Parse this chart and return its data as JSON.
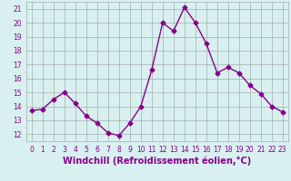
{
  "x": [
    0,
    1,
    2,
    3,
    4,
    5,
    6,
    7,
    8,
    9,
    10,
    11,
    12,
    13,
    14,
    15,
    16,
    17,
    18,
    19,
    20,
    21,
    22,
    23
  ],
  "y": [
    13.7,
    13.8,
    14.5,
    15.0,
    14.2,
    13.3,
    12.8,
    12.1,
    11.9,
    12.8,
    14.0,
    16.6,
    20.0,
    19.4,
    21.1,
    20.0,
    18.5,
    16.4,
    16.8,
    16.4,
    15.5,
    14.9,
    14.0,
    13.6
  ],
  "line_color": "#880088",
  "marker": "D",
  "marker_size": 2.5,
  "bg_color": "#d8f0f0",
  "grid_color": "#aaaaaa",
  "xlabel": "Windchill (Refroidissement éolien,°C)",
  "xlim": [
    -0.5,
    23.5
  ],
  "ylim": [
    11.5,
    21.5
  ],
  "yticks": [
    12,
    13,
    14,
    15,
    16,
    17,
    18,
    19,
    20,
    21
  ],
  "xticks": [
    0,
    1,
    2,
    3,
    4,
    5,
    6,
    7,
    8,
    9,
    10,
    11,
    12,
    13,
    14,
    15,
    16,
    17,
    18,
    19,
    20,
    21,
    22,
    23
  ],
  "tick_label_fontsize": 5.5,
  "xlabel_fontsize": 7.0,
  "line_width": 1.0
}
